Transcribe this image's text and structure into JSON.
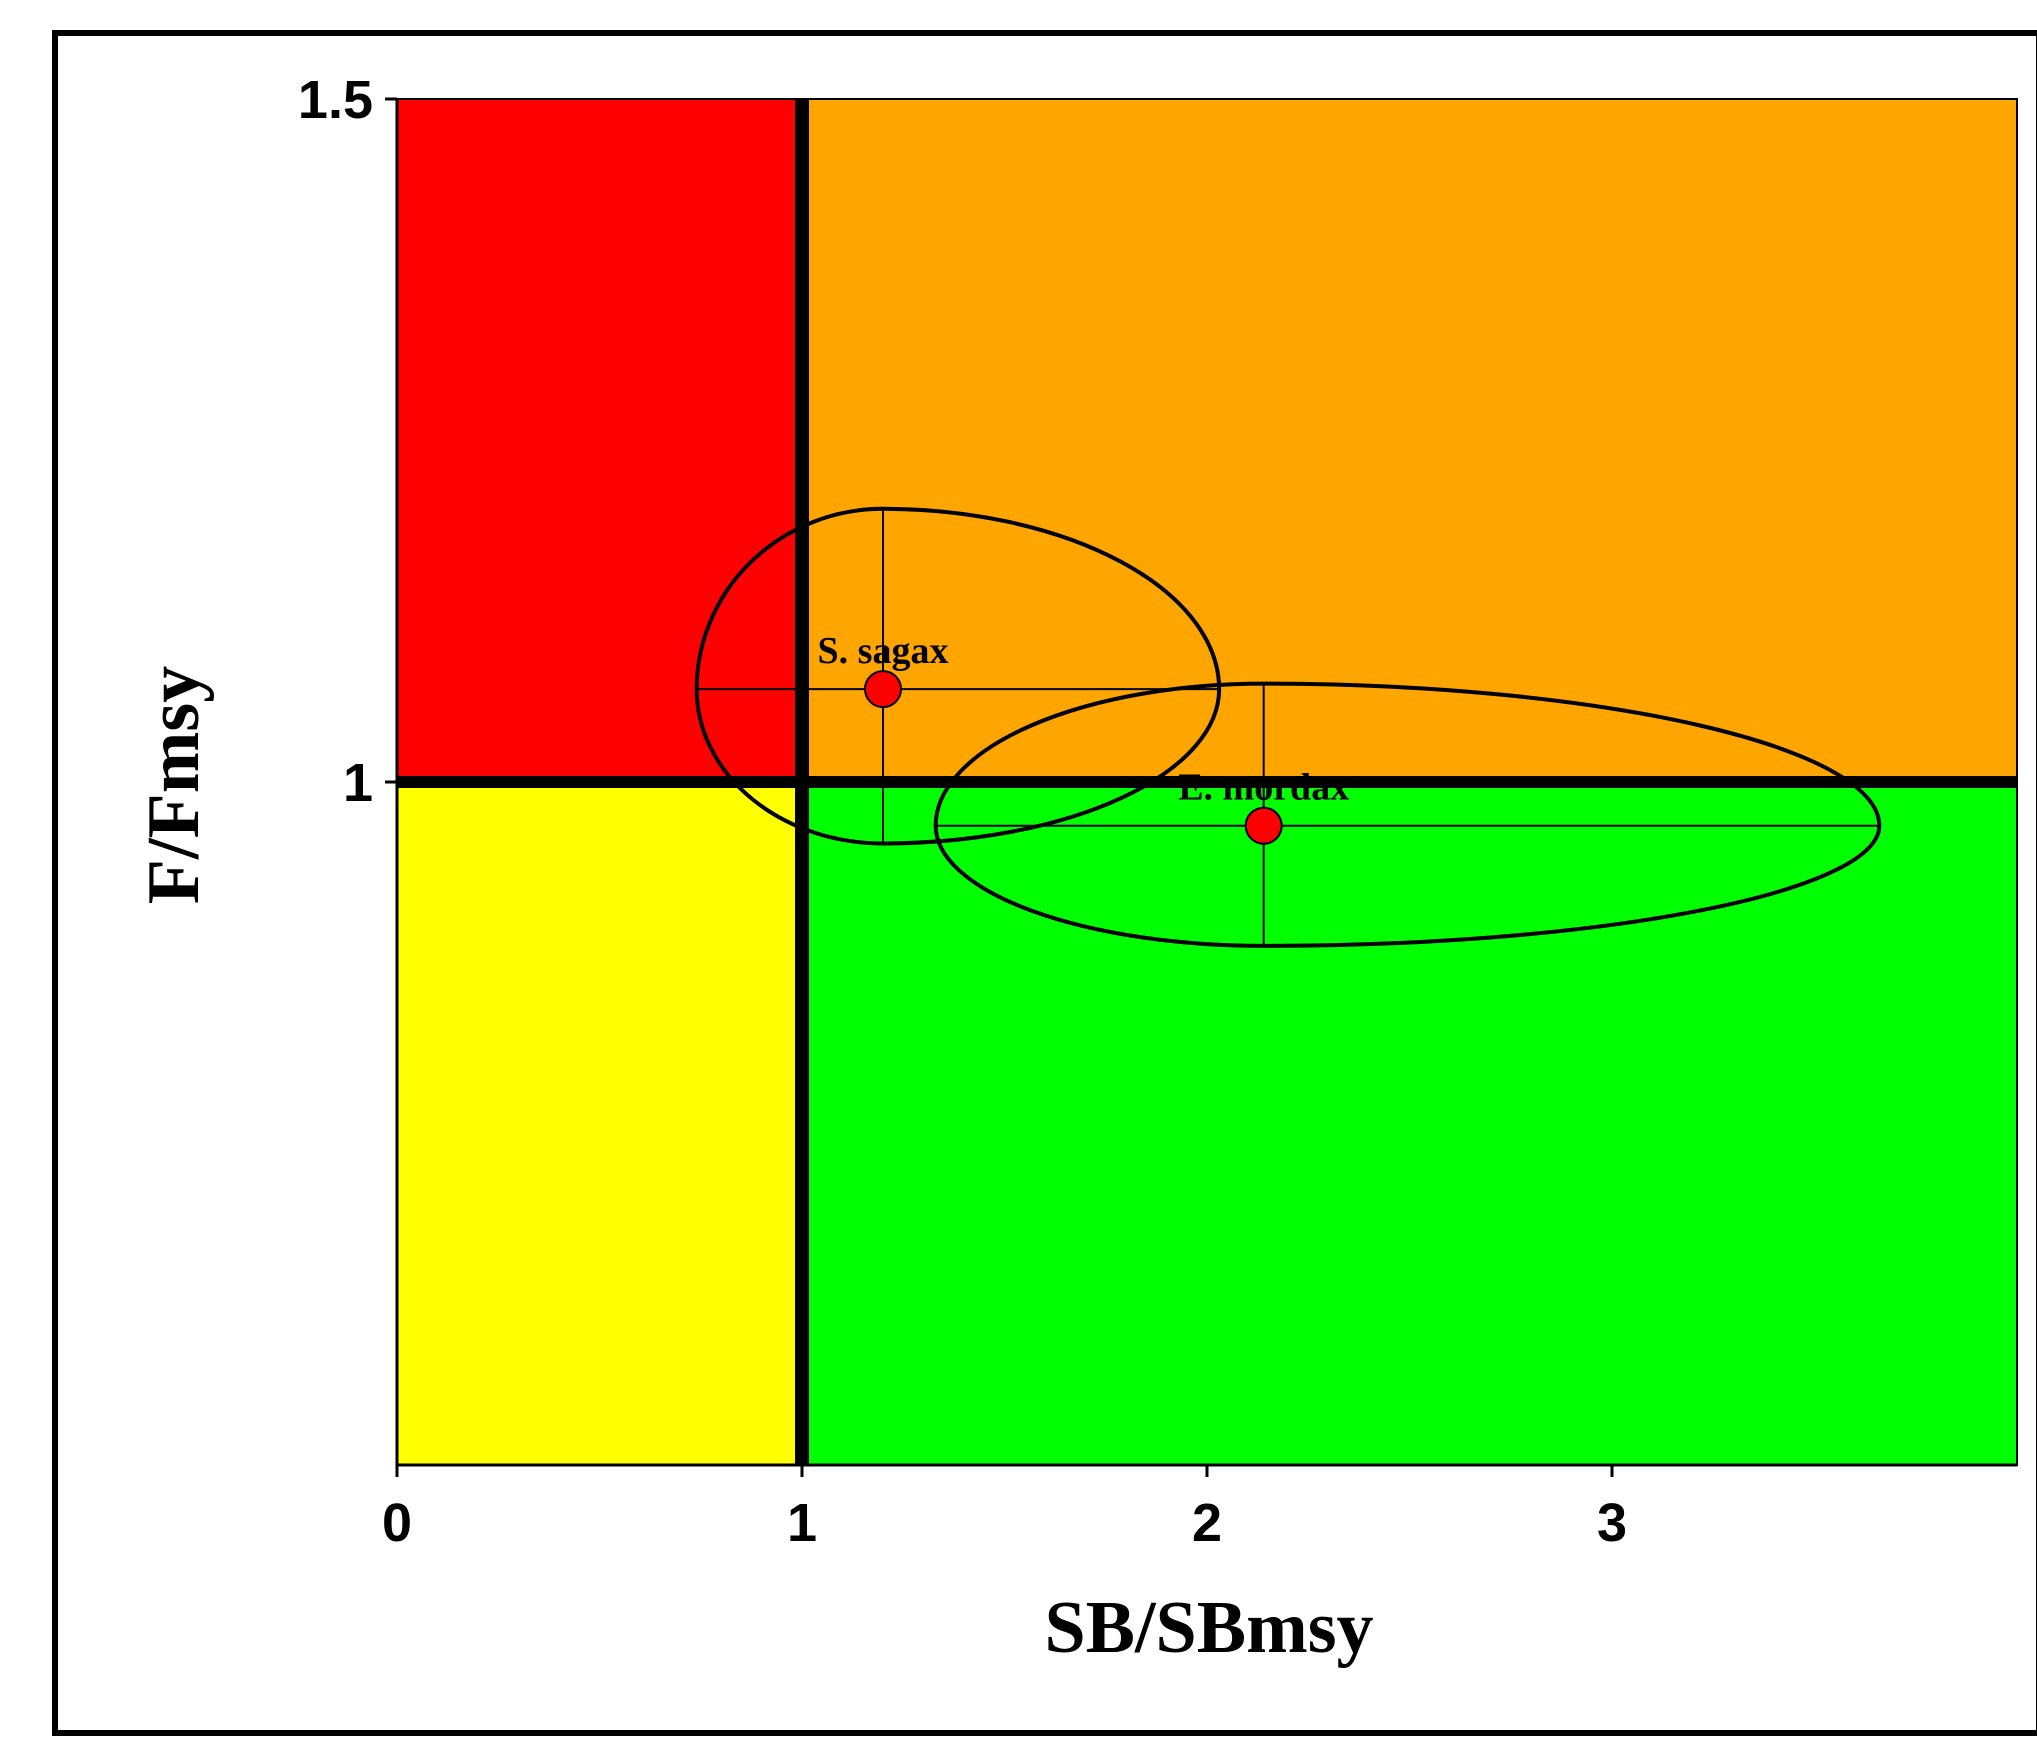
{
  "chart_data": {
    "type": "scatter",
    "title": "",
    "xlabel": "SB/SBmsy",
    "ylabel": "F/Fmsy",
    "xlim": [
      0,
      4
    ],
    "ylim": [
      0.5,
      1.5
    ],
    "x_ticks": [
      "0",
      "1",
      "2",
      "3"
    ],
    "x_tick_values": [
      0,
      1,
      2,
      3
    ],
    "y_ticks": [
      "1",
      "1.5"
    ],
    "y_tick_values": [
      1,
      1.5
    ],
    "grid": false,
    "legend": "none",
    "reference_lines": {
      "x": 1,
      "y": 1
    },
    "quadrants": [
      {
        "name": "overfished-overfishing",
        "x": [
          0,
          1
        ],
        "y": [
          1,
          1.5
        ],
        "color": "#ff0000"
      },
      {
        "name": "not-overfished-overfishing",
        "x": [
          1,
          4
        ],
        "y": [
          1,
          1.5
        ],
        "color": "#ffa500"
      },
      {
        "name": "overfished-no-overfishing",
        "x": [
          0,
          1
        ],
        "y": [
          0.5,
          1
        ],
        "color": "#ffff00"
      },
      {
        "name": "not-overfished-no-overfishing",
        "x": [
          1,
          4
        ],
        "y": [
          0.5,
          1
        ],
        "color": "#00ff00"
      }
    ],
    "points": [
      {
        "label": "S. sagax",
        "x": 1.2,
        "y": 1.068,
        "x_low": 0.74,
        "x_high": 2.03,
        "y_low": 0.955,
        "y_high": 1.2
      },
      {
        "label": "E. mordax",
        "x": 2.14,
        "y": 0.968,
        "x_low": 1.33,
        "x_high": 3.66,
        "y_low": 0.88,
        "y_high": 1.072
      }
    ],
    "point_color": "#ff0000"
  }
}
